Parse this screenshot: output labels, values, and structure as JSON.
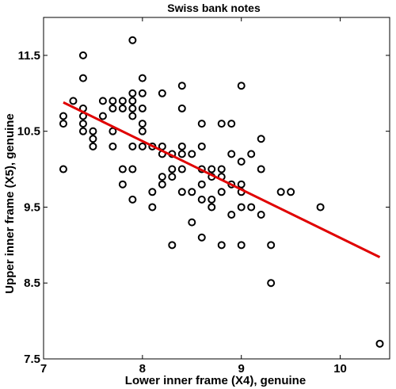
{
  "chart_data": {
    "type": "scatter",
    "title": "Swiss bank notes",
    "xlabel": "Lower inner frame (X4), genuine",
    "ylabel": "Upper inner frame (X5), genuine",
    "xlim": [
      7,
      10.5
    ],
    "ylim": [
      7.5,
      12
    ],
    "xticks": [
      7,
      8,
      9,
      10
    ],
    "yticks": [
      7.5,
      8.5,
      9.5,
      10.5,
      11.5
    ],
    "xtick_labels": [
      "7",
      "8",
      "9",
      "10"
    ],
    "ytick_labels": [
      "7.5",
      "8.5",
      "9.5",
      "10.5",
      "11.5"
    ],
    "grid": false,
    "legend": "none",
    "marker_color": "#000000",
    "line_color": "#e00000",
    "points": [
      [
        7.2,
        10.7
      ],
      [
        7.2,
        10.6
      ],
      [
        7.2,
        10.0
      ],
      [
        7.3,
        10.9
      ],
      [
        7.4,
        11.5
      ],
      [
        7.4,
        11.2
      ],
      [
        7.4,
        10.8
      ],
      [
        7.4,
        10.7
      ],
      [
        7.4,
        10.6
      ],
      [
        7.4,
        10.5
      ],
      [
        7.5,
        10.5
      ],
      [
        7.5,
        10.4
      ],
      [
        7.5,
        10.3
      ],
      [
        7.6,
        10.9
      ],
      [
        7.6,
        10.7
      ],
      [
        7.7,
        10.9
      ],
      [
        7.7,
        10.8
      ],
      [
        7.7,
        10.5
      ],
      [
        7.7,
        10.3
      ],
      [
        7.8,
        10.9
      ],
      [
        7.8,
        10.8
      ],
      [
        7.8,
        10.0
      ],
      [
        7.8,
        9.8
      ],
      [
        7.9,
        11.7
      ],
      [
        7.9,
        11.0
      ],
      [
        7.9,
        10.9
      ],
      [
        7.9,
        10.8
      ],
      [
        7.9,
        10.7
      ],
      [
        7.9,
        10.3
      ],
      [
        7.9,
        10.0
      ],
      [
        7.9,
        9.6
      ],
      [
        8.0,
        11.2
      ],
      [
        8.0,
        11.0
      ],
      [
        8.0,
        10.8
      ],
      [
        8.0,
        10.6
      ],
      [
        8.0,
        10.5
      ],
      [
        8.0,
        10.3
      ],
      [
        8.1,
        10.3
      ],
      [
        8.1,
        9.7
      ],
      [
        8.1,
        9.5
      ],
      [
        8.2,
        11.0
      ],
      [
        8.2,
        10.3
      ],
      [
        8.2,
        10.2
      ],
      [
        8.2,
        9.9
      ],
      [
        8.2,
        9.8
      ],
      [
        8.3,
        10.2
      ],
      [
        8.3,
        10.0
      ],
      [
        8.3,
        9.9
      ],
      [
        8.3,
        9.0
      ],
      [
        8.4,
        11.1
      ],
      [
        8.4,
        10.8
      ],
      [
        8.4,
        10.3
      ],
      [
        8.4,
        10.2
      ],
      [
        8.4,
        10.0
      ],
      [
        8.4,
        9.7
      ],
      [
        8.5,
        10.2
      ],
      [
        8.5,
        9.7
      ],
      [
        8.5,
        9.3
      ],
      [
        8.6,
        10.6
      ],
      [
        8.6,
        10.3
      ],
      [
        8.6,
        10.0
      ],
      [
        8.6,
        9.8
      ],
      [
        8.6,
        9.6
      ],
      [
        8.6,
        9.1
      ],
      [
        8.7,
        10.0
      ],
      [
        8.7,
        9.9
      ],
      [
        8.7,
        9.6
      ],
      [
        8.7,
        9.5
      ],
      [
        8.8,
        10.6
      ],
      [
        8.8,
        10.0
      ],
      [
        8.8,
        9.9
      ],
      [
        8.8,
        9.7
      ],
      [
        8.8,
        9.0
      ],
      [
        8.9,
        10.6
      ],
      [
        8.9,
        10.2
      ],
      [
        8.9,
        9.8
      ],
      [
        8.9,
        9.4
      ],
      [
        9.0,
        11.1
      ],
      [
        9.0,
        10.1
      ],
      [
        9.0,
        9.8
      ],
      [
        9.0,
        9.7
      ],
      [
        9.0,
        9.5
      ],
      [
        9.0,
        9.0
      ],
      [
        9.1,
        10.2
      ],
      [
        9.1,
        9.5
      ],
      [
        9.2,
        10.4
      ],
      [
        9.2,
        10.0
      ],
      [
        9.2,
        9.4
      ],
      [
        9.3,
        9.0
      ],
      [
        9.3,
        8.5
      ],
      [
        9.4,
        9.7
      ],
      [
        9.5,
        9.7
      ],
      [
        9.8,
        9.5
      ],
      [
        10.4,
        7.7
      ]
    ],
    "trend_line": {
      "x": [
        7.2,
        10.4
      ],
      "y": [
        10.88,
        8.84
      ]
    }
  }
}
